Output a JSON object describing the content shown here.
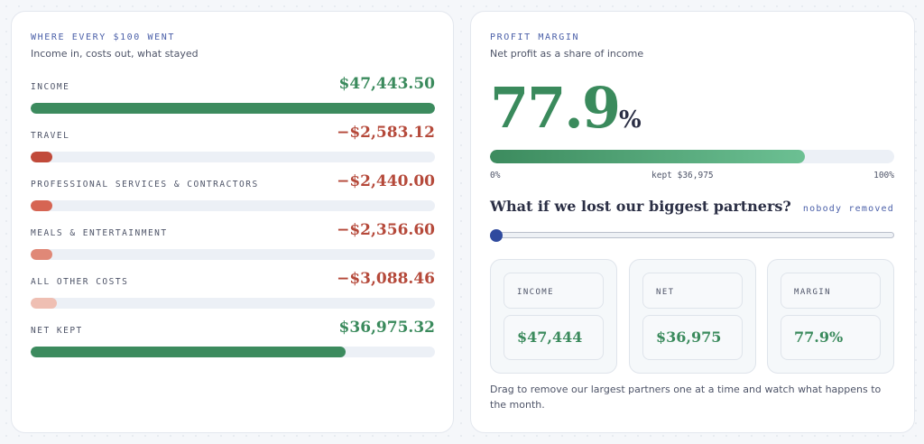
{
  "breakdown": {
    "title": "WHERE EVERY $100 WENT",
    "subtitle": "Income in, costs out, what stayed",
    "rows": [
      {
        "label": "INCOME",
        "value": "$47,443.50",
        "fraction": 1.0,
        "value_color": "#3a8a5c",
        "bar_color": "#3c8b5e"
      },
      {
        "label": "TRAVEL",
        "value": "−$2,583.12",
        "fraction": 0.0544,
        "value_color": "#b5493a",
        "bar_color": "#c14a3a"
      },
      {
        "label": "PROFESSIONAL SERVICES & CONTRACTORS",
        "value": "−$2,440.00",
        "fraction": 0.0514,
        "value_color": "#b5493a",
        "bar_color": "#d66553"
      },
      {
        "label": "MEALS & ENTERTAINMENT",
        "value": "−$2,356.60",
        "fraction": 0.0497,
        "value_color": "#b5493a",
        "bar_color": "#e08877"
      },
      {
        "label": "ALL OTHER COSTS",
        "value": "−$3,088.46",
        "fraction": 0.0651,
        "value_color": "#b5493a",
        "bar_color": "#efbfb3"
      },
      {
        "label": "NET KEPT",
        "value": "$36,975.32",
        "fraction": 0.779,
        "value_color": "#3a8a5c",
        "bar_color": "#3c8b5e"
      }
    ]
  },
  "profit": {
    "title": "PROFIT MARGIN",
    "subtitle": "Net profit as a share of income",
    "margin_number": "77.9",
    "margin_unit": "%",
    "margin_fraction": 0.779,
    "axis_min": "0%",
    "axis_mid": "kept $36,975",
    "axis_max": "100%",
    "question": "What if we lost our biggest partners?",
    "status": "nobody removed",
    "slider_value": 0,
    "stats": [
      {
        "label": "INCOME",
        "value": "$47,444"
      },
      {
        "label": "NET",
        "value": "$36,975"
      },
      {
        "label": "MARGIN",
        "value": "77.9%"
      }
    ],
    "hint": "Drag to remove our largest partners one at a time and watch what happens to the month."
  }
}
